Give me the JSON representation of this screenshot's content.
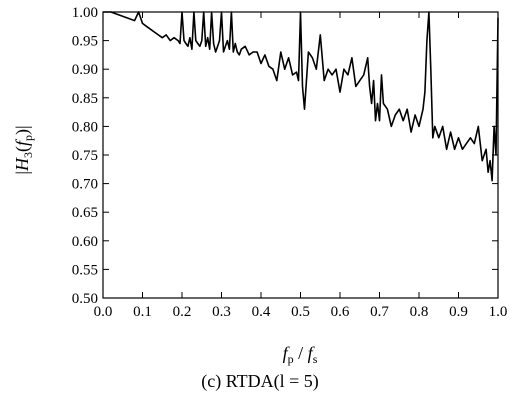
{
  "caption": "(c)  RTDA(l = 5)",
  "chart_data": {
    "type": "line",
    "xlabel": "f_p / f_s",
    "ylabel": "|H_3(f_p)|",
    "xlim": [
      0.0,
      1.0
    ],
    "ylim": [
      0.5,
      1.0
    ],
    "grid": false,
    "x_ticks": [
      "0.0",
      "0.1",
      "0.2",
      "0.3",
      "0.4",
      "0.5",
      "0.6",
      "0.7",
      "0.8",
      "0.9",
      "1.0"
    ],
    "y_ticks": [
      "0.50",
      "0.55",
      "0.60",
      "0.65",
      "0.70",
      "0.75",
      "0.80",
      "0.85",
      "0.90",
      "0.95",
      "1.00"
    ],
    "series": [
      {
        "x": [
          0.0,
          0.02,
          0.04,
          0.06,
          0.08,
          0.09,
          0.1,
          0.11,
          0.12,
          0.13,
          0.14,
          0.15,
          0.16,
          0.17,
          0.18,
          0.19,
          0.195,
          0.2,
          0.205,
          0.21,
          0.215,
          0.22,
          0.225,
          0.23,
          0.235,
          0.24,
          0.245,
          0.25,
          0.255,
          0.26,
          0.265,
          0.27,
          0.275,
          0.28,
          0.285,
          0.29,
          0.295,
          0.3,
          0.305,
          0.31,
          0.315,
          0.32,
          0.325,
          0.33,
          0.335,
          0.34,
          0.345,
          0.35,
          0.36,
          0.37,
          0.38,
          0.39,
          0.4,
          0.41,
          0.42,
          0.43,
          0.44,
          0.45,
          0.46,
          0.47,
          0.48,
          0.49,
          0.495,
          0.5,
          0.505,
          0.51,
          0.52,
          0.53,
          0.54,
          0.55,
          0.56,
          0.57,
          0.58,
          0.59,
          0.6,
          0.61,
          0.62,
          0.63,
          0.64,
          0.65,
          0.66,
          0.67,
          0.675,
          0.68,
          0.685,
          0.69,
          0.695,
          0.7,
          0.705,
          0.71,
          0.72,
          0.73,
          0.74,
          0.75,
          0.76,
          0.77,
          0.78,
          0.79,
          0.8,
          0.81,
          0.815,
          0.82,
          0.825,
          0.83,
          0.835,
          0.84,
          0.85,
          0.86,
          0.87,
          0.88,
          0.89,
          0.9,
          0.91,
          0.92,
          0.93,
          0.94,
          0.95,
          0.96,
          0.97,
          0.975,
          0.98,
          0.985,
          0.99,
          0.995,
          1.0
        ],
        "y": [
          1.0,
          1.0,
          0.995,
          0.99,
          0.985,
          1.0,
          0.98,
          0.975,
          0.97,
          0.965,
          0.96,
          0.955,
          0.96,
          0.95,
          0.955,
          0.95,
          0.945,
          1.0,
          0.95,
          0.945,
          0.94,
          0.955,
          0.935,
          1.0,
          0.95,
          0.945,
          0.94,
          0.95,
          1.0,
          0.94,
          0.955,
          0.935,
          1.0,
          0.945,
          0.93,
          0.94,
          0.95,
          1.0,
          0.93,
          0.94,
          0.95,
          0.935,
          1.0,
          0.93,
          0.945,
          0.93,
          0.925,
          0.935,
          0.94,
          0.925,
          0.93,
          0.93,
          0.91,
          0.925,
          0.905,
          0.9,
          0.88,
          0.93,
          0.9,
          0.92,
          0.89,
          0.895,
          0.88,
          1.0,
          0.87,
          0.83,
          0.93,
          0.92,
          0.9,
          0.96,
          0.88,
          0.9,
          0.89,
          0.9,
          0.86,
          0.9,
          0.89,
          0.92,
          0.87,
          0.88,
          0.89,
          0.92,
          0.87,
          0.84,
          0.88,
          0.81,
          0.84,
          0.81,
          0.89,
          0.84,
          0.83,
          0.8,
          0.82,
          0.83,
          0.81,
          0.83,
          0.79,
          0.82,
          0.8,
          0.83,
          0.86,
          0.95,
          1.0,
          0.9,
          0.78,
          0.8,
          0.78,
          0.8,
          0.76,
          0.79,
          0.76,
          0.78,
          0.76,
          0.77,
          0.78,
          0.77,
          0.8,
          0.74,
          0.76,
          0.72,
          0.74,
          0.705,
          0.8,
          0.75,
          0.99
        ]
      }
    ]
  }
}
